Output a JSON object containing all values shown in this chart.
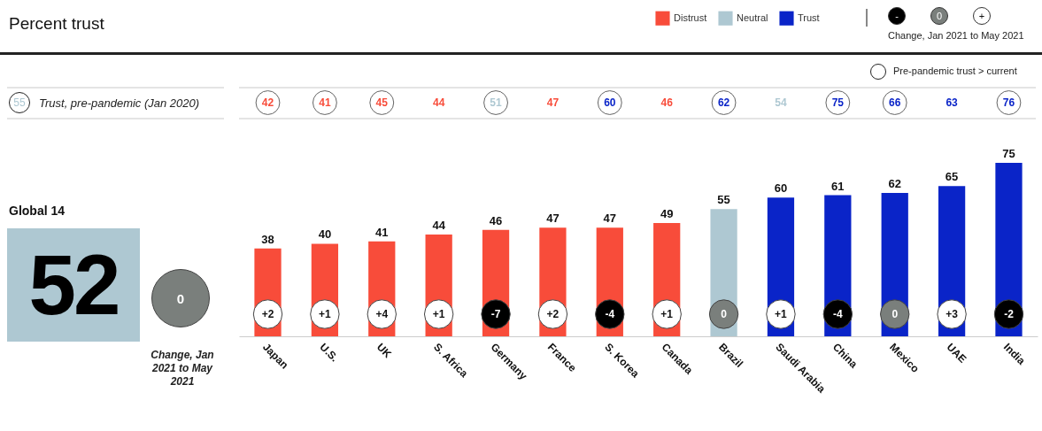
{
  "chart_data": {
    "type": "bar",
    "title": "Percent trust",
    "categories": [
      "Japan",
      "U.S.",
      "UK",
      "S. Africa",
      "Germany",
      "France",
      "S. Korea",
      "Canada",
      "Brazil",
      "Saudi Arabia",
      "China",
      "Mexico",
      "UAE",
      "India"
    ],
    "series": [
      {
        "name": "Distrust",
        "color": "#f84c3a",
        "values": [
          38,
          40,
          41,
          44,
          46,
          47,
          47,
          49,
          null,
          null,
          null,
          null,
          null,
          null
        ]
      },
      {
        "name": "Neutral",
        "color": "#aec8d2",
        "values": [
          null,
          null,
          null,
          null,
          null,
          null,
          null,
          null,
          55,
          null,
          null,
          null,
          null,
          null
        ]
      },
      {
        "name": "Trust",
        "color": "#0a24c8",
        "values": [
          null,
          null,
          null,
          null,
          null,
          null,
          null,
          null,
          null,
          60,
          61,
          62,
          65,
          75
        ]
      }
    ],
    "data_labels": true,
    "legend": "top right",
    "grid": false,
    "annotations": [
      "42",
      "41",
      "45",
      "44",
      "51",
      "47",
      "60",
      "46",
      "62",
      "54",
      "75",
      "66",
      "63",
      "76",
      "+2",
      "+1",
      "+4",
      "+1",
      "-7",
      "+2",
      "-4",
      "+1",
      "0",
      "+1",
      "-4",
      "0",
      "+3",
      "-2",
      "55",
      "Trust, pre-pandemic (Jan 2020)",
      "Global 14",
      "52",
      "0",
      "Change, Jan 2021 to May 2021",
      "-",
      "0",
      "+",
      "Change, Jan 2021 to May 2021",
      "Pre-pandemic trust > current"
    ]
  }
}
